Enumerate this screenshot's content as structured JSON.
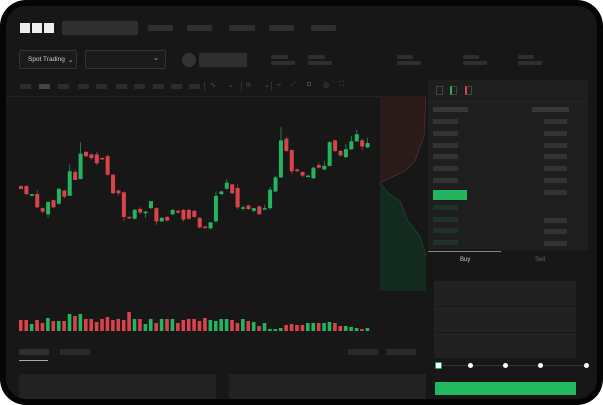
{
  "header": {
    "logo": "OKX",
    "nav_items": 5
  },
  "toolbar": {
    "market_type": "Spot Trading",
    "market_type_icon": "chevron-down-icon",
    "pair_icon": "chevron-down-icon"
  },
  "order_panel": {
    "tabs": [
      {
        "label": "Buy",
        "active": true
      },
      {
        "label": "Sell",
        "active": false
      }
    ],
    "leverage_marks": [
      0,
      25,
      50,
      75,
      100
    ],
    "leverage_value": 0
  },
  "colors": {
    "up": "#22b45e",
    "down": "#d9434b",
    "background": "#171717",
    "accent_button": "#22b85f"
  },
  "chart_data": {
    "type": "candlestick",
    "title": "",
    "xlabel": "",
    "ylabel": "",
    "grid": false,
    "candles": [
      [
        68,
        65,
        69,
        64
      ],
      [
        68,
        59,
        69,
        58
      ],
      [
        57,
        59,
        59,
        57
      ],
      [
        59,
        44,
        64,
        43
      ],
      [
        43,
        39,
        44,
        37
      ],
      [
        36,
        50,
        51,
        32
      ],
      [
        52,
        44,
        53,
        43
      ],
      [
        48,
        65,
        66,
        47
      ],
      [
        63,
        56,
        64,
        54
      ],
      [
        57,
        85,
        93,
        57
      ],
      [
        84,
        75,
        87,
        75
      ],
      [
        76,
        105,
        118,
        76
      ],
      [
        107,
        102,
        108,
        101
      ],
      [
        104,
        100,
        105,
        98
      ],
      [
        104,
        94,
        107,
        92
      ],
      [
        100,
        99,
        101,
        98
      ],
      [
        102,
        81,
        104,
        80
      ],
      [
        81,
        60,
        82,
        59
      ],
      [
        63,
        60,
        64,
        57
      ],
      [
        61,
        33,
        62,
        28
      ],
      [
        33,
        32,
        34,
        31
      ],
      [
        31,
        41,
        42,
        30
      ],
      [
        42,
        38,
        44,
        36
      ],
      [
        38,
        39,
        40,
        32
      ],
      [
        43,
        51,
        44,
        42
      ],
      [
        43,
        28,
        44,
        24
      ],
      [
        28,
        32,
        33,
        27
      ],
      [
        33,
        29,
        34,
        28
      ],
      [
        36,
        41,
        42,
        35
      ],
      [
        40,
        38,
        41,
        37
      ],
      [
        41,
        30,
        42,
        28
      ],
      [
        41,
        31,
        42,
        30
      ],
      [
        40,
        33,
        41,
        32
      ],
      [
        32,
        21,
        33,
        20
      ],
      [
        22,
        21,
        23,
        20
      ],
      [
        20,
        27,
        21,
        19
      ],
      [
        28,
        57,
        62,
        27
      ],
      [
        59,
        62,
        63,
        58
      ],
      [
        65,
        72,
        76,
        64
      ],
      [
        70,
        60,
        71,
        59
      ],
      [
        66,
        44,
        70,
        42
      ],
      [
        43,
        44,
        46,
        40
      ],
      [
        46,
        42,
        47,
        41
      ],
      [
        40,
        43,
        43,
        38
      ],
      [
        45,
        36,
        46,
        36
      ],
      [
        43,
        43,
        47,
        42
      ],
      [
        43,
        64,
        67,
        41
      ],
      [
        62,
        78,
        80,
        61
      ],
      [
        78,
        120,
        135,
        77
      ],
      [
        122,
        108,
        124,
        107
      ],
      [
        109,
        85,
        110,
        82
      ],
      [
        87,
        85,
        88,
        84
      ],
      [
        84,
        80,
        85,
        78
      ],
      [
        80,
        80,
        81,
        79
      ],
      [
        77,
        89,
        90,
        76
      ],
      [
        92,
        89,
        95,
        88
      ],
      [
        87,
        91,
        97,
        86
      ],
      [
        91,
        118,
        119,
        90
      ],
      [
        120,
        108,
        121,
        107
      ],
      [
        108,
        103,
        109,
        102
      ],
      [
        101,
        110,
        116,
        100
      ],
      [
        110,
        119,
        125,
        109
      ],
      [
        119,
        127,
        132,
        118
      ],
      [
        120,
        113,
        122,
        109
      ],
      [
        112,
        117,
        123,
        111
      ]
    ],
    "volume": [
      11,
      11,
      7,
      11,
      8,
      13,
      10,
      10,
      10,
      17,
      15,
      17,
      12,
      12,
      9,
      12,
      14,
      11,
      12,
      11,
      19,
      12,
      12,
      7,
      12,
      8,
      12,
      12,
      12,
      8,
      11,
      12,
      12,
      10,
      13,
      11,
      10,
      12,
      12,
      11,
      8,
      12,
      10,
      9,
      5,
      8,
      2,
      2,
      3,
      6,
      7,
      6,
      6,
      8,
      8,
      8,
      8,
      9,
      8,
      5,
      5,
      4,
      3,
      2,
      3
    ]
  }
}
